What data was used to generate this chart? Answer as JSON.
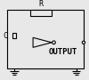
{
  "bg_color": "#e8e8e8",
  "line_color": "#000000",
  "output_label": "OUTPUT",
  "component_label_R": "R",
  "component_label_C": "C",
  "fig_width": 1.0,
  "fig_height": 0.9,
  "dpi": 100,
  "border_color": "#aaaaaa"
}
